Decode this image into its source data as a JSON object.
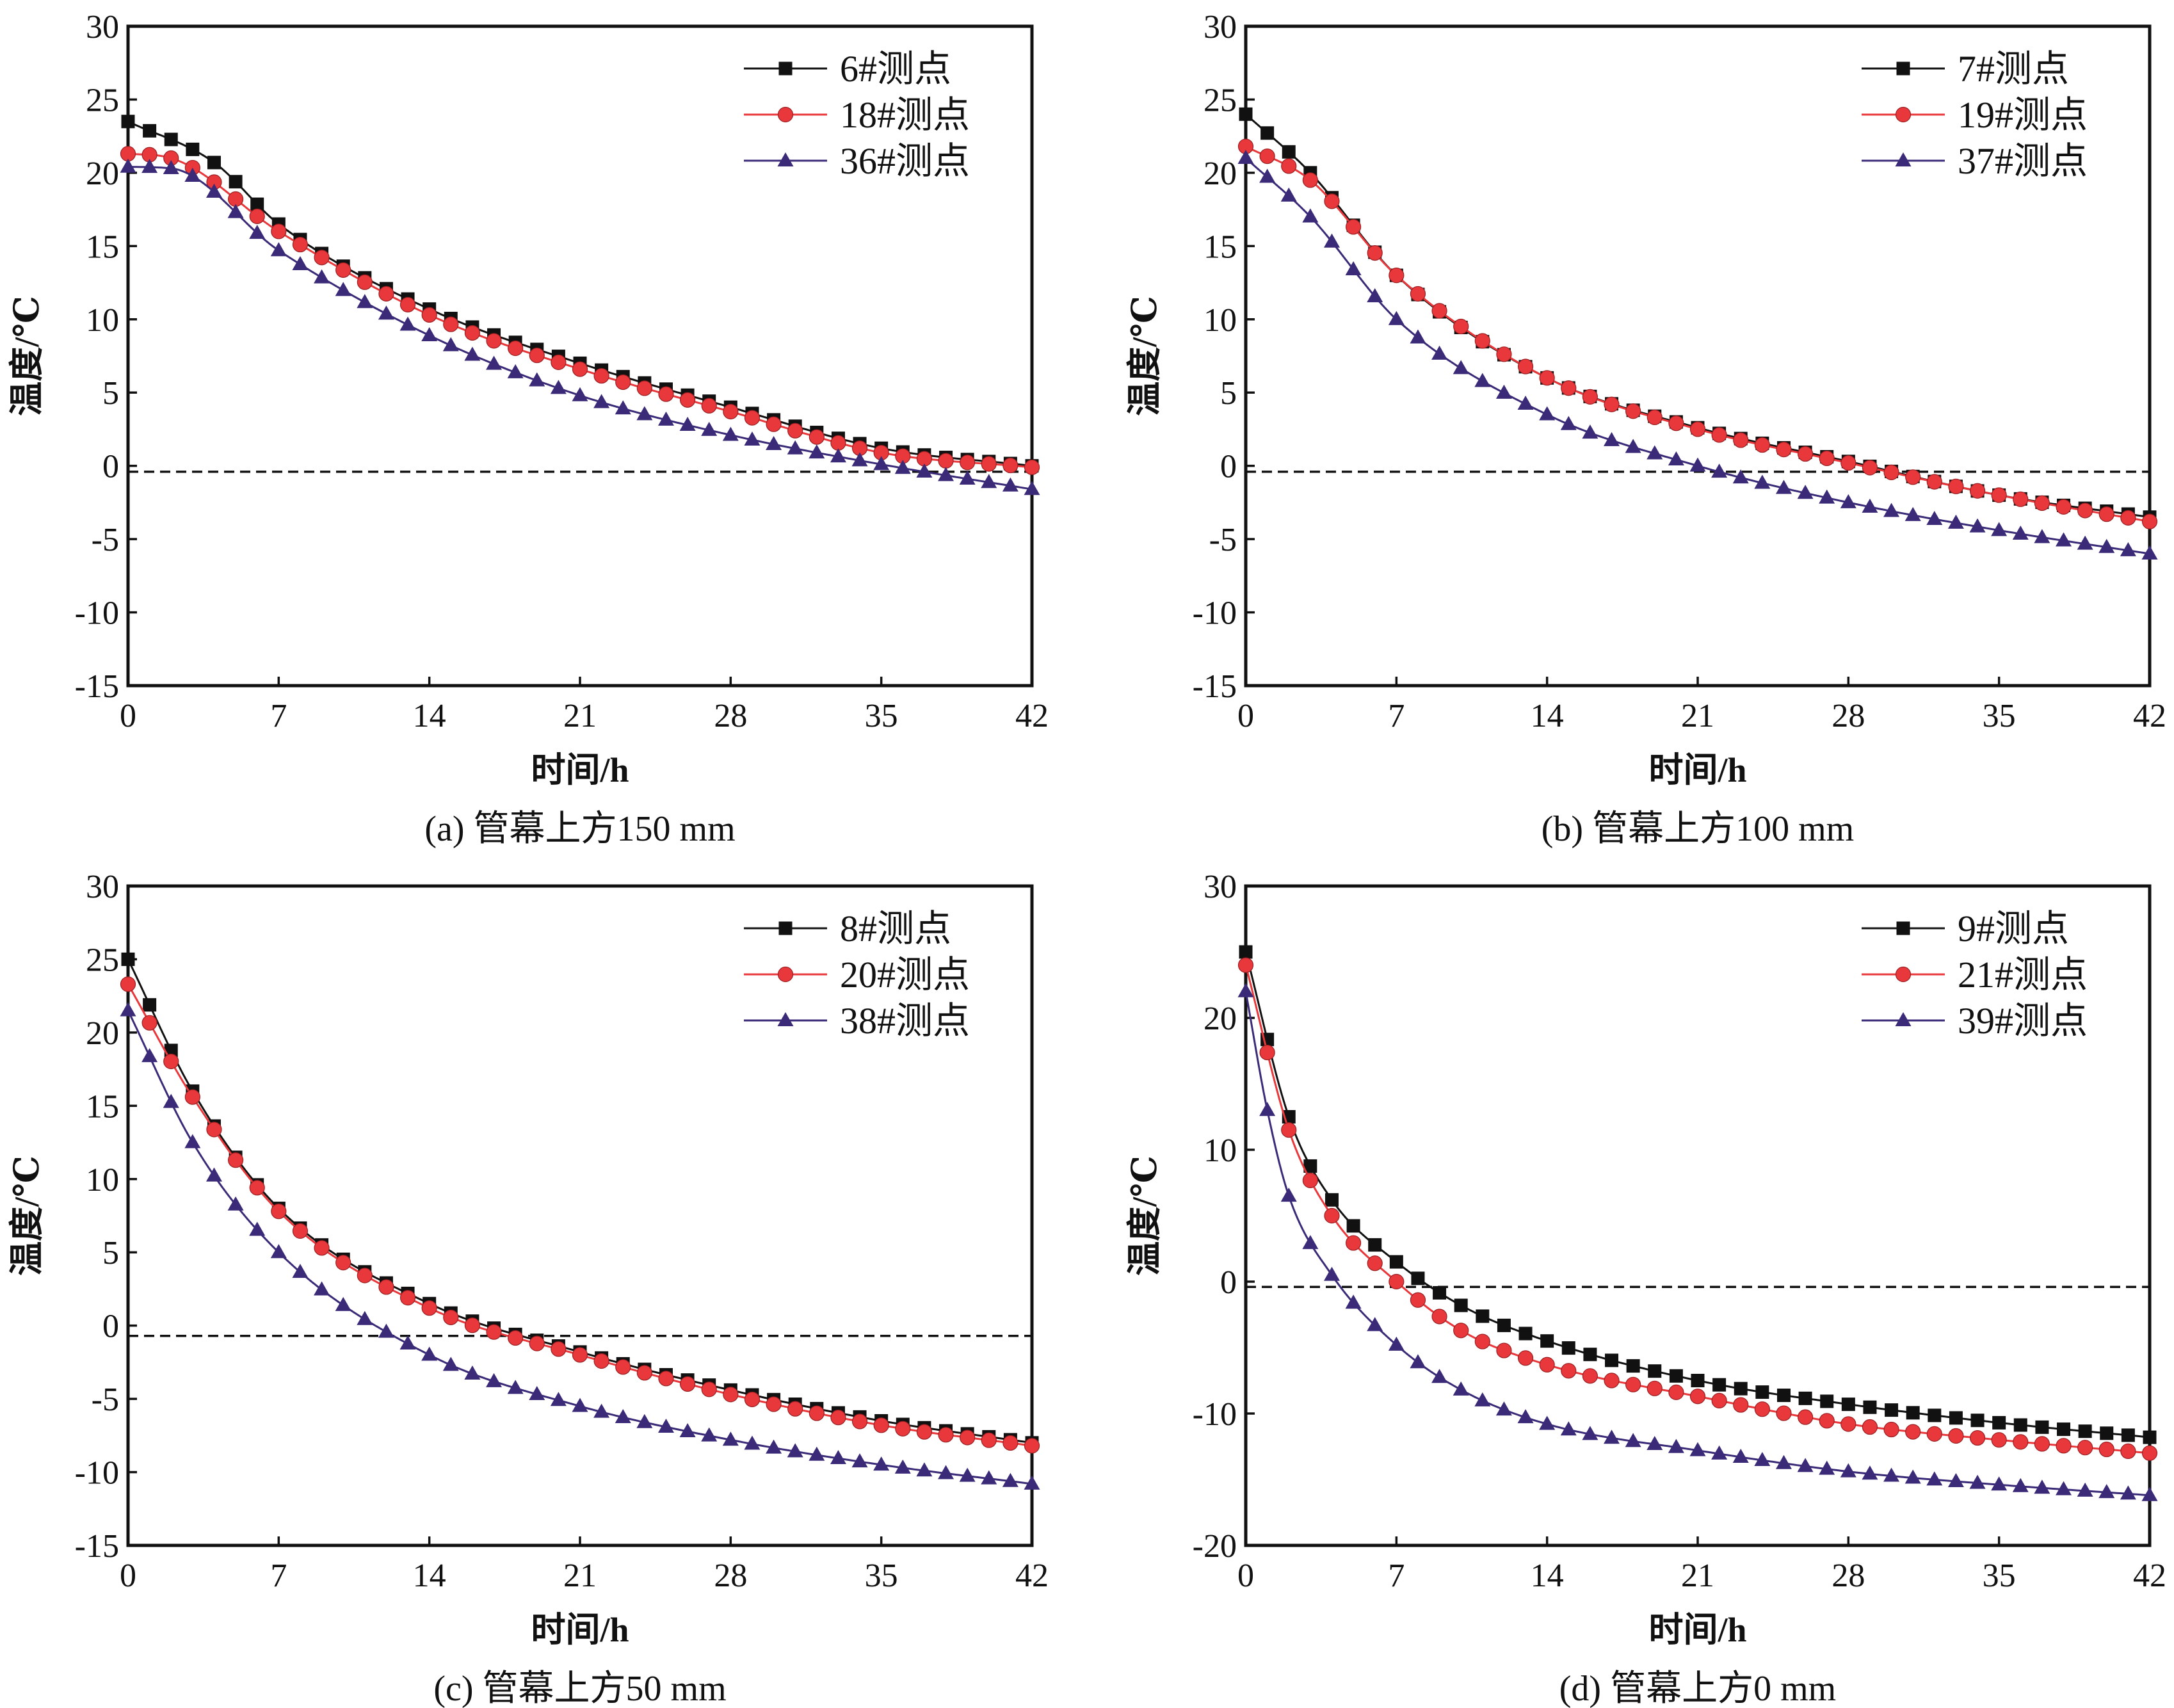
{
  "colors": {
    "series_black": "#111111",
    "series_red": "#e8383b",
    "series_purple": "#3b2a78",
    "reference_line": "#111111"
  },
  "chart_data": [
    {
      "type": "line",
      "caption": "(a) 管幕上方150 mm",
      "xlabel": "时间/h",
      "ylabel": "温度/℃",
      "xlim": [
        0,
        42
      ],
      "ylim": [
        -15,
        30
      ],
      "xticks": [
        0,
        7,
        14,
        21,
        28,
        35,
        42
      ],
      "yticks": [
        -15,
        -10,
        -5,
        0,
        5,
        10,
        15,
        20,
        25,
        30
      ],
      "xtick_labels": [
        "0",
        "7",
        "14",
        "21",
        "28",
        "35",
        "42"
      ],
      "ytick_labels": [
        "-15",
        "-10",
        "-5",
        "0",
        "5",
        "10",
        "15",
        "20",
        "25",
        "30"
      ],
      "reference_y": -0.4,
      "legend_position": "top-right",
      "grid": false,
      "series": [
        {
          "name": "6#测点",
          "marker": "square",
          "color": "#111111",
          "points": [
            [
              0,
              23.5
            ],
            [
              4,
              20.7
            ],
            [
              7,
              16.5
            ],
            [
              14,
              10.7
            ],
            [
              21,
              7.0
            ],
            [
              28,
              4.0
            ],
            [
              35,
              1.2
            ],
            [
              42,
              0.0
            ]
          ]
        },
        {
          "name": "18#测点",
          "marker": "circle",
          "color": "#e8383b",
          "points": [
            [
              0,
              21.3
            ],
            [
              2,
              21.0
            ],
            [
              7,
              16.0
            ],
            [
              14,
              10.3
            ],
            [
              21,
              6.6
            ],
            [
              28,
              3.7
            ],
            [
              35,
              0.9
            ],
            [
              42,
              -0.1
            ]
          ]
        },
        {
          "name": "36#测点",
          "marker": "triangle",
          "color": "#3b2a78",
          "points": [
            [
              0,
              20.4
            ],
            [
              2,
              20.3
            ],
            [
              7,
              14.7
            ],
            [
              14,
              8.9
            ],
            [
              21,
              4.8
            ],
            [
              28,
              2.1
            ],
            [
              35,
              0.1
            ],
            [
              42,
              -1.6
            ]
          ]
        }
      ]
    },
    {
      "type": "line",
      "caption": "(b) 管幕上方100 mm",
      "xlabel": "时间/h",
      "ylabel": "温度/℃",
      "xlim": [
        0,
        42
      ],
      "ylim": [
        -15,
        30
      ],
      "xticks": [
        0,
        7,
        14,
        21,
        28,
        35,
        42
      ],
      "yticks": [
        -15,
        -10,
        -5,
        0,
        5,
        10,
        15,
        20,
        25,
        30
      ],
      "xtick_labels": [
        "0",
        "7",
        "14",
        "21",
        "28",
        "35",
        "42"
      ],
      "ytick_labels": [
        "-15",
        "-10",
        "-5",
        "0",
        "5",
        "10",
        "15",
        "20",
        "25",
        "30"
      ],
      "reference_y": -0.4,
      "legend_position": "top-right",
      "grid": false,
      "series": [
        {
          "name": "7#测点",
          "marker": "square",
          "color": "#111111",
          "points": [
            [
              0,
              24.0
            ],
            [
              3,
              20.0
            ],
            [
              7,
              13.0
            ],
            [
              14,
              6.0
            ],
            [
              21,
              2.6
            ],
            [
              28,
              0.3
            ],
            [
              35,
              -2.0
            ],
            [
              42,
              -3.5
            ]
          ]
        },
        {
          "name": "19#测点",
          "marker": "circle",
          "color": "#e8383b",
          "points": [
            [
              0,
              21.8
            ],
            [
              3,
              19.5
            ],
            [
              7,
              13.0
            ],
            [
              14,
              6.0
            ],
            [
              21,
              2.5
            ],
            [
              28,
              0.2
            ],
            [
              35,
              -2.0
            ],
            [
              42,
              -3.8
            ]
          ]
        },
        {
          "name": "37#测点",
          "marker": "triangle",
          "color": "#3b2a78",
          "points": [
            [
              0,
              21.0
            ],
            [
              3,
              17.0
            ],
            [
              7,
              10.0
            ],
            [
              14,
              3.5
            ],
            [
              21,
              0.0
            ],
            [
              28,
              -2.5
            ],
            [
              35,
              -4.4
            ],
            [
              42,
              -6.0
            ]
          ]
        }
      ]
    },
    {
      "type": "line",
      "caption": "(c) 管幕上方50 mm",
      "xlabel": "时间/h",
      "ylabel": "温度/℃",
      "xlim": [
        0,
        42
      ],
      "ylim": [
        -15,
        30
      ],
      "xticks": [
        0,
        7,
        14,
        21,
        28,
        35,
        42
      ],
      "yticks": [
        -15,
        -10,
        -5,
        0,
        5,
        10,
        15,
        20,
        25,
        30
      ],
      "xtick_labels": [
        "0",
        "7",
        "14",
        "21",
        "28",
        "35",
        "42"
      ],
      "ytick_labels": [
        "-15",
        "-10",
        "-5",
        "0",
        "5",
        "10",
        "15",
        "20",
        "25",
        "30"
      ],
      "reference_y": -0.7,
      "legend_position": "top-right",
      "grid": false,
      "series": [
        {
          "name": "8#测点",
          "marker": "square",
          "color": "#111111",
          "points": [
            [
              0,
              25.0
            ],
            [
              3,
              16.0
            ],
            [
              7,
              8.0
            ],
            [
              14,
              1.5
            ],
            [
              21,
              -1.8
            ],
            [
              28,
              -4.4
            ],
            [
              35,
              -6.5
            ],
            [
              42,
              -8.0
            ]
          ]
        },
        {
          "name": "20#测点",
          "marker": "circle",
          "color": "#e8383b",
          "points": [
            [
              0,
              23.3
            ],
            [
              3,
              15.6
            ],
            [
              7,
              7.8
            ],
            [
              14,
              1.2
            ],
            [
              21,
              -2.0
            ],
            [
              28,
              -4.7
            ],
            [
              35,
              -6.8
            ],
            [
              42,
              -8.2
            ]
          ]
        },
        {
          "name": "38#测点",
          "marker": "triangle",
          "color": "#3b2a78",
          "points": [
            [
              0,
              21.5
            ],
            [
              3,
              12.5
            ],
            [
              7,
              5.0
            ],
            [
              14,
              -2.0
            ],
            [
              21,
              -5.5
            ],
            [
              28,
              -7.8
            ],
            [
              35,
              -9.5
            ],
            [
              42,
              -10.8
            ]
          ]
        }
      ]
    },
    {
      "type": "line",
      "caption": "(d) 管幕上方0 mm",
      "xlabel": "时间/h",
      "ylabel": "温度/℃",
      "xlim": [
        0,
        42
      ],
      "ylim": [
        -20,
        30
      ],
      "xticks": [
        0,
        7,
        14,
        21,
        28,
        35,
        42
      ],
      "yticks": [
        -20,
        -10,
        0,
        10,
        20,
        30
      ],
      "xtick_labels": [
        "0",
        "7",
        "14",
        "21",
        "28",
        "35",
        "42"
      ],
      "ytick_labels": [
        "-20",
        "-10",
        "0",
        "10",
        "20",
        "30"
      ],
      "reference_y": -0.4,
      "legend_position": "top-right",
      "grid": false,
      "series": [
        {
          "name": "9#测点",
          "marker": "square",
          "color": "#111111",
          "points": [
            [
              0,
              25.0
            ],
            [
              2,
              12.5
            ],
            [
              4,
              6.2
            ],
            [
              7,
              1.5
            ],
            [
              10,
              -1.8
            ],
            [
              14,
              -4.5
            ],
            [
              21,
              -7.5
            ],
            [
              28,
              -9.3
            ],
            [
              35,
              -10.7
            ],
            [
              42,
              -11.8
            ]
          ]
        },
        {
          "name": "21#测点",
          "marker": "circle",
          "color": "#e8383b",
          "points": [
            [
              0,
              24.0
            ],
            [
              2,
              11.5
            ],
            [
              4,
              5.0
            ],
            [
              7,
              0.0
            ],
            [
              10,
              -3.7
            ],
            [
              14,
              -6.3
            ],
            [
              21,
              -8.7
            ],
            [
              28,
              -10.8
            ],
            [
              35,
              -12.0
            ],
            [
              42,
              -13.0
            ]
          ]
        },
        {
          "name": "39#测点",
          "marker": "triangle",
          "color": "#3b2a78",
          "points": [
            [
              0,
              22.0
            ],
            [
              1,
              13.0
            ],
            [
              2,
              6.5
            ],
            [
              4,
              0.5
            ],
            [
              7,
              -4.8
            ],
            [
              10,
              -8.2
            ],
            [
              14,
              -10.8
            ],
            [
              21,
              -12.8
            ],
            [
              28,
              -14.4
            ],
            [
              35,
              -15.4
            ],
            [
              42,
              -16.2
            ]
          ]
        }
      ]
    }
  ]
}
